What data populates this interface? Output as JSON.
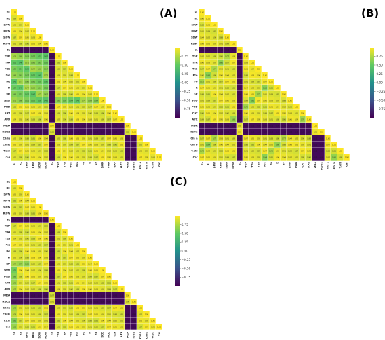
{
  "panels": [
    {
      "label": "(A)"
    },
    {
      "label": "(B)"
    },
    {
      "label": "(C)"
    }
  ],
  "colors": {
    "cmap": [
      "#440154",
      "#3b528b",
      "#21918c",
      "#5ec962",
      "#fde725"
    ]
  },
  "chart_data": [
    {
      "type": "heatmap",
      "title": "",
      "variables": [
        "SL",
        "RL",
        "SFW",
        "RFW",
        "SDW",
        "RDW",
        "EL",
        "TSP",
        "TPA",
        "TSS",
        "Pro",
        "Po",
        "K",
        "SP",
        "SOD",
        "POD",
        "CAT",
        "APX",
        "MDA",
        "H2O2",
        "Chl a",
        "Chl b",
        "T.chl",
        "Car"
      ],
      "colorbar": {
        "range": [
          -1,
          1
        ],
        "ticks": [
          "0.75",
          "0.50",
          "0.25",
          "0.00",
          "−0.25",
          "−0.50",
          "−0.75"
        ]
      },
      "negative_rows": [
        "EL",
        "MDA",
        "H2O2"
      ],
      "negative_value": -0.95,
      "positive_value": 0.95
    },
    {
      "type": "heatmap",
      "title": "",
      "variables": [
        "SL",
        "RL",
        "SFW",
        "RFW",
        "SDW",
        "RDW",
        "EL",
        "TSP",
        "TPA",
        "TSS",
        "Pro",
        "Po",
        "K",
        "SP",
        "SOD",
        "POD",
        "CAT",
        "APX",
        "MDA",
        "H2O2",
        "Chl a",
        "Chl b",
        "T.chl",
        "Car"
      ],
      "colorbar": {
        "range": [
          -1,
          1
        ],
        "ticks": [
          "0.75",
          "0.50",
          "0.25",
          "0.00",
          "−0.25",
          "−0.50",
          "−0.75"
        ]
      },
      "negative_rows": [
        "EL",
        "MDA",
        "H2O2"
      ],
      "negative_value": -0.95,
      "positive_value": 0.95
    },
    {
      "type": "heatmap",
      "title": "",
      "variables": [
        "SL",
        "RL",
        "SFW",
        "RFW",
        "SDW",
        "RDW",
        "EL",
        "TSP",
        "TPA",
        "TSS",
        "Pro",
        "Po",
        "K",
        "SP",
        "SOD",
        "POD",
        "CAT",
        "APX",
        "MDA",
        "H2O2",
        "Chl a",
        "Chl b",
        "T.chl",
        "Car"
      ],
      "colorbar": {
        "range": [
          -1,
          1
        ],
        "ticks": [
          "0.75",
          "0.50",
          "0.25",
          "0.00",
          "−0.25",
          "−0.50",
          "−0.75"
        ]
      },
      "negative_rows": [
        "EL",
        "MDA",
        "H2O2"
      ],
      "negative_value": -0.95,
      "positive_value": 0.95
    }
  ]
}
